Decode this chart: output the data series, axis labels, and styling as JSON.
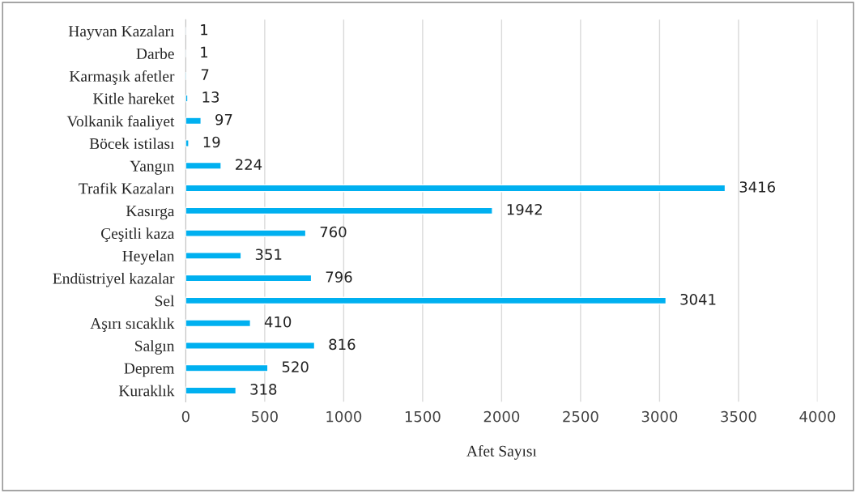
{
  "chart_data": {
    "type": "bar",
    "orientation": "horizontal",
    "xlabel": "Afet Sayısı",
    "categories": [
      "Hayvan Kazaları",
      "Darbe",
      "Karmaşık afetler",
      "Kitle hareket",
      "Volkanik faaliyet",
      "Böcek istilası",
      "Yangın",
      "Trafik Kazaları",
      "Kasırga",
      "Çeşitli kaza",
      "Heyelan",
      "Endüstriyel kazalar",
      "Sel",
      "Aşırı sıcaklık",
      "Salgın",
      "Deprem",
      "Kuraklık"
    ],
    "values": [
      1,
      1,
      7,
      13,
      97,
      19,
      224,
      3416,
      1942,
      760,
      351,
      796,
      3041,
      410,
      816,
      520,
      318
    ],
    "color": "#00b0f0",
    "xlim": [
      0,
      4000
    ],
    "xticks": [
      0,
      500,
      1000,
      1500,
      2000,
      2500,
      3000,
      3500,
      4000
    ],
    "grid": "x",
    "data_labels": true,
    "legend": false
  }
}
